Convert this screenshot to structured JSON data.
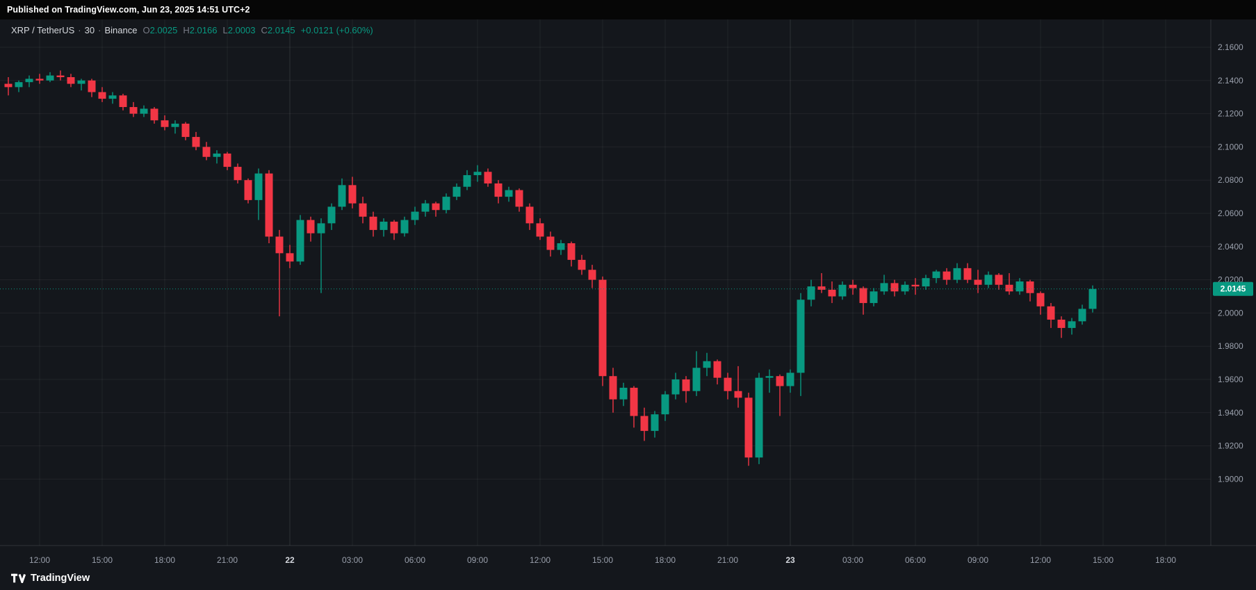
{
  "topbar": {
    "published_text": "Published on TradingView.com, Jun 23, 2025 14:51 UTC+2"
  },
  "legend": {
    "symbol": "XRP / TetherUS",
    "separator": "·",
    "interval": "30",
    "exchange": "Binance",
    "o_label": "O",
    "open": "2.0025",
    "h_label": "H",
    "high": "2.0166",
    "l_label": "L",
    "low": "2.0003",
    "c_label": "C",
    "close": "2.0145",
    "change": "+0.0121 (+0.60%)"
  },
  "footer": {
    "brand": "TradingView"
  },
  "chart_data": {
    "type": "candlestick",
    "title": "XRP / TetherUS · 30 · Binance",
    "symbol": "XRP/USDT",
    "exchange": "Binance",
    "interval_minutes": 30,
    "start_time": "2025-06-21 10:30 UTC+2",
    "grid": true,
    "ylim": [
      1.86,
      2.177
    ],
    "up_color": "#089981",
    "down_color": "#f23645",
    "current_price": 2.0145,
    "current_price_label": "2.0145",
    "last_candle": {
      "open": 2.0025,
      "high": 2.0166,
      "low": 2.0003,
      "close": 2.0145,
      "change": "+0.0121 (+0.60%)"
    },
    "price_ticks": [
      "2.1600",
      "2.1400",
      "2.1200",
      "2.1000",
      "2.0800",
      "2.0600",
      "2.0400",
      "2.0200",
      "2.0000",
      "1.9800",
      "1.9600",
      "1.9400",
      "1.9200",
      "1.9000"
    ],
    "time_ticks": [
      {
        "label": "12:00",
        "index": 3,
        "day": false
      },
      {
        "label": "15:00",
        "index": 9,
        "day": false
      },
      {
        "label": "18:00",
        "index": 15,
        "day": false
      },
      {
        "label": "21:00",
        "index": 21,
        "day": false
      },
      {
        "label": "22",
        "index": 27,
        "day": true
      },
      {
        "label": "03:00",
        "index": 33,
        "day": false
      },
      {
        "label": "06:00",
        "index": 39,
        "day": false
      },
      {
        "label": "09:00",
        "index": 45,
        "day": false
      },
      {
        "label": "12:00",
        "index": 51,
        "day": false
      },
      {
        "label": "15:00",
        "index": 57,
        "day": false
      },
      {
        "label": "18:00",
        "index": 63,
        "day": false
      },
      {
        "label": "21:00",
        "index": 69,
        "day": false
      },
      {
        "label": "23",
        "index": 75,
        "day": true
      },
      {
        "label": "03:00",
        "index": 81,
        "day": false
      },
      {
        "label": "06:00",
        "index": 87,
        "day": false
      },
      {
        "label": "09:00",
        "index": 93,
        "day": false
      },
      {
        "label": "12:00",
        "index": 99,
        "day": false
      },
      {
        "label": "15:00",
        "index": 105,
        "day": false
      },
      {
        "label": "18:00",
        "index": 111,
        "day": false
      }
    ],
    "candles_ohlc": [
      [
        2.138,
        2.142,
        2.131,
        2.136
      ],
      [
        2.136,
        2.14,
        2.133,
        2.139
      ],
      [
        2.139,
        2.143,
        2.136,
        2.141
      ],
      [
        2.141,
        2.144,
        2.138,
        2.14
      ],
      [
        2.14,
        2.145,
        2.139,
        2.143
      ],
      [
        2.143,
        2.146,
        2.14,
        2.142
      ],
      [
        2.142,
        2.144,
        2.136,
        2.138
      ],
      [
        2.138,
        2.141,
        2.134,
        2.14
      ],
      [
        2.14,
        2.141,
        2.13,
        2.133
      ],
      [
        2.133,
        2.136,
        2.127,
        2.129
      ],
      [
        2.129,
        2.133,
        2.126,
        2.131
      ],
      [
        2.131,
        2.132,
        2.122,
        2.124
      ],
      [
        2.124,
        2.127,
        2.118,
        2.12
      ],
      [
        2.12,
        2.125,
        2.118,
        2.123
      ],
      [
        2.123,
        2.124,
        2.114,
        2.116
      ],
      [
        2.116,
        2.119,
        2.11,
        2.112
      ],
      [
        2.112,
        2.116,
        2.108,
        2.114
      ],
      [
        2.114,
        2.115,
        2.104,
        2.106
      ],
      [
        2.106,
        2.109,
        2.098,
        2.1
      ],
      [
        2.1,
        2.103,
        2.092,
        2.094
      ],
      [
        2.094,
        2.098,
        2.09,
        2.096
      ],
      [
        2.096,
        2.097,
        2.086,
        2.088
      ],
      [
        2.088,
        2.09,
        2.078,
        2.08
      ],
      [
        2.08,
        2.081,
        2.066,
        2.068
      ],
      [
        2.068,
        2.087,
        2.056,
        2.084
      ],
      [
        2.084,
        2.086,
        2.042,
        2.046
      ],
      [
        2.046,
        2.05,
        1.998,
        2.036
      ],
      [
        2.036,
        2.041,
        2.027,
        2.031
      ],
      [
        2.031,
        2.059,
        2.029,
        2.056
      ],
      [
        2.056,
        2.058,
        2.043,
        2.048
      ],
      [
        2.048,
        2.057,
        2.012,
        2.054
      ],
      [
        2.054,
        2.066,
        2.05,
        2.064
      ],
      [
        2.064,
        2.081,
        2.062,
        2.077
      ],
      [
        2.077,
        2.082,
        2.063,
        2.066
      ],
      [
        2.066,
        2.07,
        2.054,
        2.058
      ],
      [
        2.058,
        2.061,
        2.046,
        2.05
      ],
      [
        2.05,
        2.057,
        2.046,
        2.055
      ],
      [
        2.055,
        2.056,
        2.044,
        2.048
      ],
      [
        2.048,
        2.058,
        2.046,
        2.056
      ],
      [
        2.056,
        2.064,
        2.053,
        2.061
      ],
      [
        2.061,
        2.068,
        2.058,
        2.066
      ],
      [
        2.066,
        2.067,
        2.058,
        2.062
      ],
      [
        2.062,
        2.072,
        2.06,
        2.07
      ],
      [
        2.07,
        2.078,
        2.068,
        2.076
      ],
      [
        2.076,
        2.086,
        2.074,
        2.083
      ],
      [
        2.083,
        2.089,
        2.079,
        2.085
      ],
      [
        2.085,
        2.087,
        2.076,
        2.078
      ],
      [
        2.078,
        2.08,
        2.066,
        2.07
      ],
      [
        2.07,
        2.076,
        2.067,
        2.074
      ],
      [
        2.074,
        2.075,
        2.061,
        2.064
      ],
      [
        2.064,
        2.066,
        2.05,
        2.054
      ],
      [
        2.054,
        2.057,
        2.044,
        2.046
      ],
      [
        2.046,
        2.049,
        2.034,
        2.038
      ],
      [
        2.038,
        2.044,
        2.035,
        2.042
      ],
      [
        2.042,
        2.043,
        2.028,
        2.032
      ],
      [
        2.032,
        2.035,
        2.023,
        2.026
      ],
      [
        2.026,
        2.029,
        2.015,
        2.02
      ],
      [
        2.02,
        2.022,
        1.956,
        1.962
      ],
      [
        1.962,
        1.967,
        1.94,
        1.948
      ],
      [
        1.948,
        1.958,
        1.944,
        1.955
      ],
      [
        1.955,
        1.956,
        1.931,
        1.938
      ],
      [
        1.938,
        1.943,
        1.923,
        1.929
      ],
      [
        1.929,
        1.941,
        1.925,
        1.939
      ],
      [
        1.939,
        1.953,
        1.935,
        1.951
      ],
      [
        1.951,
        1.964,
        1.948,
        1.96
      ],
      [
        1.96,
        1.962,
        1.946,
        1.953
      ],
      [
        1.953,
        1.977,
        1.95,
        1.967
      ],
      [
        1.967,
        1.976,
        1.962,
        1.971
      ],
      [
        1.971,
        1.972,
        1.957,
        1.961
      ],
      [
        1.961,
        1.964,
        1.948,
        1.953
      ],
      [
        1.953,
        1.968,
        1.943,
        1.949
      ],
      [
        1.949,
        1.952,
        1.908,
        1.913
      ],
      [
        1.913,
        1.964,
        1.909,
        1.961
      ],
      [
        1.961,
        1.966,
        1.952,
        1.962
      ],
      [
        1.962,
        1.963,
        1.938,
        1.956
      ],
      [
        1.956,
        1.966,
        1.952,
        1.964
      ],
      [
        1.964,
        2.012,
        1.95,
        2.008
      ],
      [
        2.008,
        2.02,
        2.004,
        2.016
      ],
      [
        2.016,
        2.024,
        2.012,
        2.014
      ],
      [
        2.014,
        2.019,
        2.006,
        2.01
      ],
      [
        2.01,
        2.019,
        2.008,
        2.017
      ],
      [
        2.017,
        2.02,
        2.011,
        2.015
      ],
      [
        2.015,
        2.016,
        1.999,
        2.006
      ],
      [
        2.006,
        2.015,
        2.004,
        2.013
      ],
      [
        2.013,
        2.023,
        2.011,
        2.018
      ],
      [
        2.018,
        2.02,
        2.01,
        2.013
      ],
      [
        2.013,
        2.019,
        2.011,
        2.017
      ],
      [
        2.017,
        2.021,
        2.011,
        2.016
      ],
      [
        2.016,
        2.023,
        2.014,
        2.021
      ],
      [
        2.021,
        2.026,
        2.018,
        2.025
      ],
      [
        2.025,
        2.027,
        2.017,
        2.02
      ],
      [
        2.02,
        2.03,
        2.018,
        2.027
      ],
      [
        2.027,
        2.03,
        2.018,
        2.02
      ],
      [
        2.02,
        2.026,
        2.012,
        2.017
      ],
      [
        2.017,
        2.025,
        2.015,
        2.023
      ],
      [
        2.023,
        2.024,
        2.014,
        2.017
      ],
      [
        2.017,
        2.024,
        2.011,
        2.013
      ],
      [
        2.013,
        2.021,
        2.011,
        2.019
      ],
      [
        2.019,
        2.02,
        2.007,
        2.012
      ],
      [
        2.012,
        2.013,
        1.999,
        2.004
      ],
      [
        2.004,
        2.006,
        1.991,
        1.996
      ],
      [
        1.996,
        1.998,
        1.985,
        1.991
      ],
      [
        1.991,
        1.997,
        1.987,
        1.995
      ],
      [
        1.995,
        2.005,
        1.993,
        2.0025
      ],
      [
        2.0025,
        2.0166,
        2.0003,
        2.0145
      ]
    ]
  }
}
